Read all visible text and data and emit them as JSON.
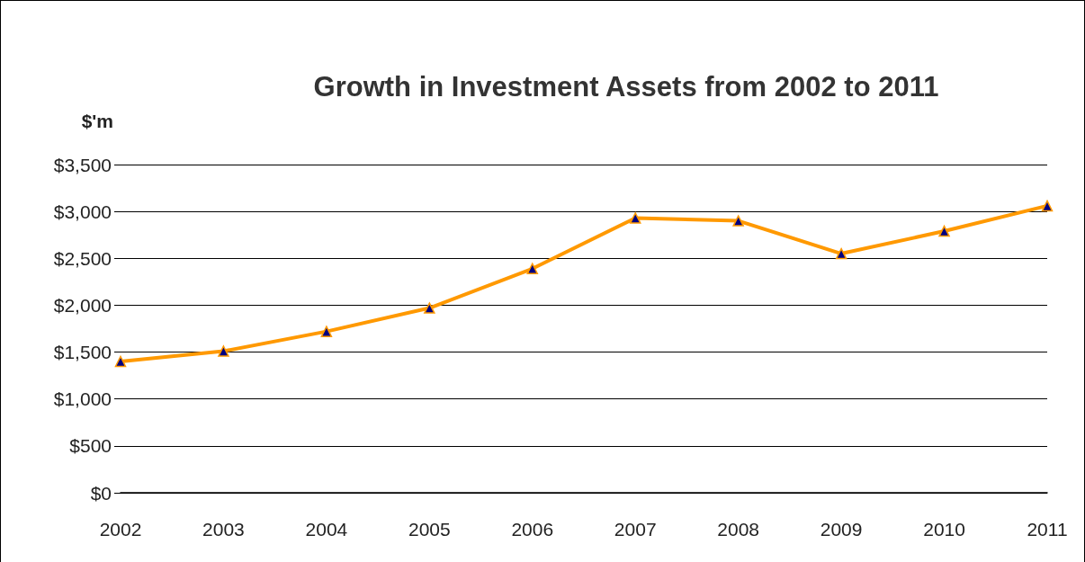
{
  "chart_data": {
    "type": "line",
    "title": "Growth in Investment Assets from 2002 to 2011",
    "ylabel": "$'m",
    "categories": [
      "2002",
      "2003",
      "2004",
      "2005",
      "2006",
      "2007",
      "2008",
      "2009",
      "2010",
      "2011"
    ],
    "series": [
      {
        "color": "#ff9900",
        "values": [
          1400,
          1510,
          1720,
          1970,
          2390,
          2930,
          2900,
          2550,
          2790,
          3060
        ]
      }
    ],
    "ylim": [
      0,
      3500
    ],
    "yticks": [
      {
        "value": 0,
        "label": "$0"
      },
      {
        "value": 500,
        "label": "$500"
      },
      {
        "value": 1000,
        "label": "$1,000"
      },
      {
        "value": 1500,
        "label": "$1,500"
      },
      {
        "value": 2000,
        "label": "$2,000"
      },
      {
        "value": 2500,
        "label": "$2,500"
      },
      {
        "value": 3000,
        "label": "$3,000"
      },
      {
        "value": 3500,
        "label": "$3,500"
      }
    ],
    "grid": "y",
    "marker": "triangle",
    "line_style": "solid"
  }
}
